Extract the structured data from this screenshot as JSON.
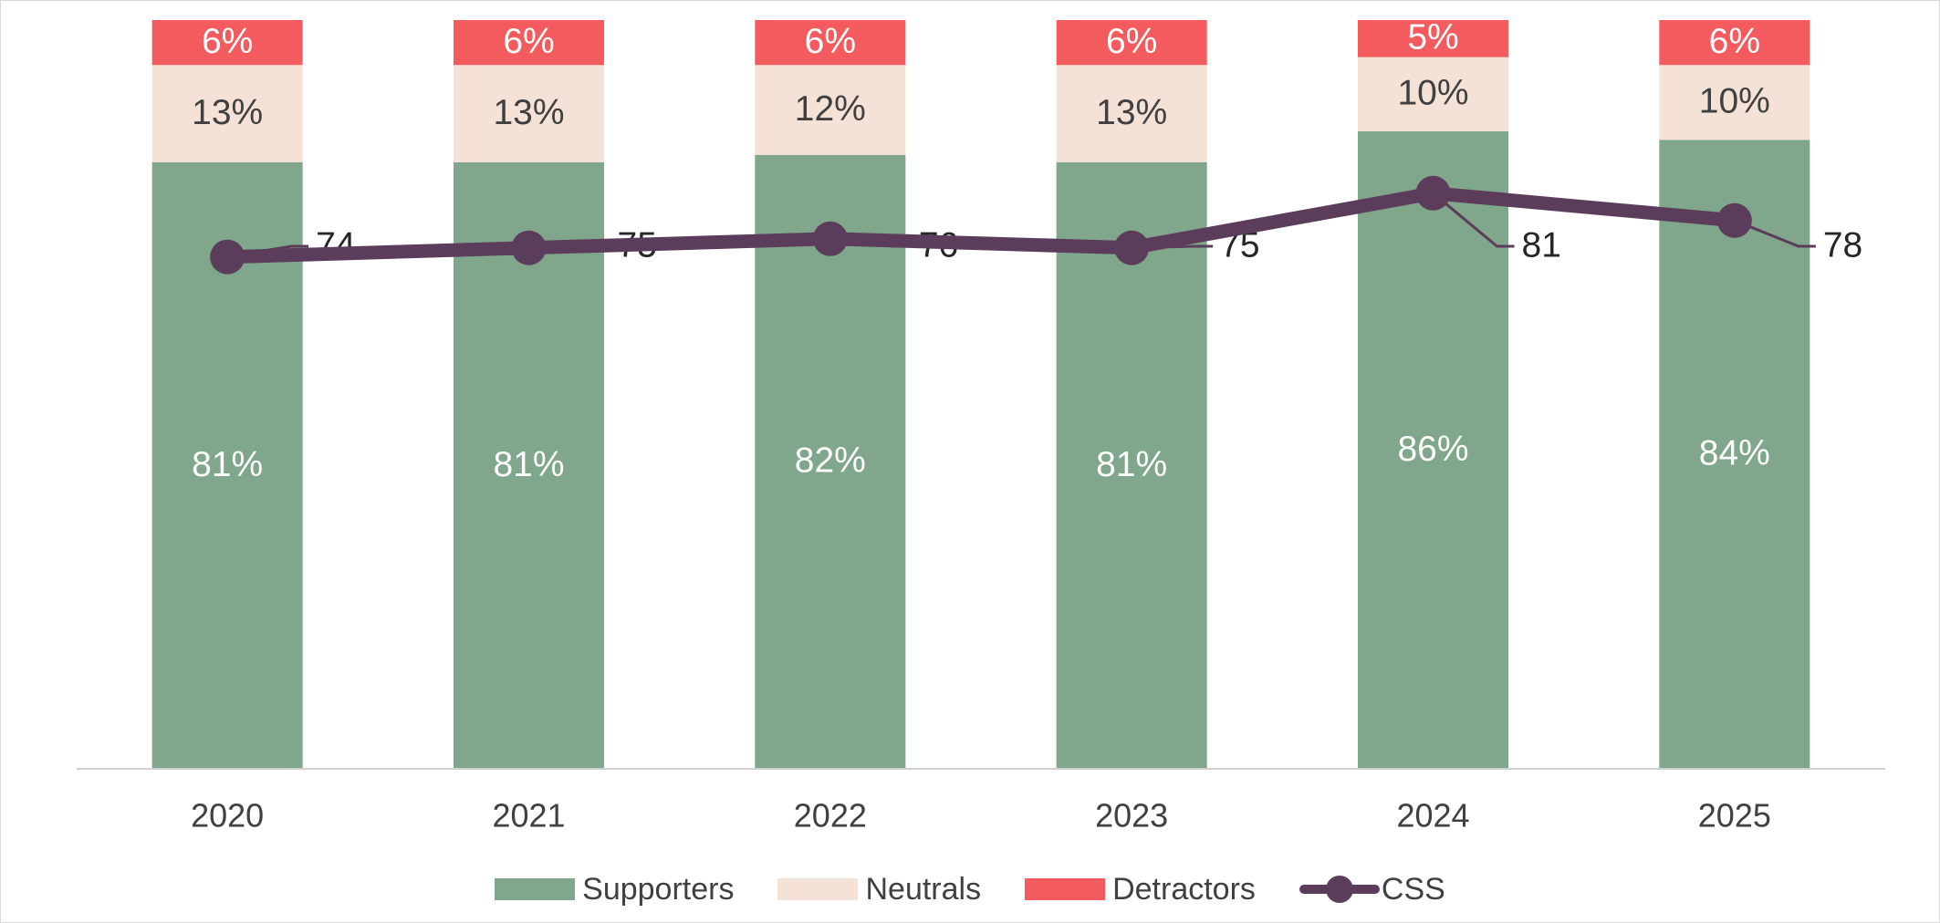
{
  "chart_data": {
    "type": "bar",
    "stacked": true,
    "categories": [
      "2020",
      "2021",
      "2022",
      "2023",
      "2024",
      "2025"
    ],
    "series": [
      {
        "name": "Supporters",
        "values": [
          81,
          81,
          82,
          81,
          86,
          84
        ],
        "labels": [
          "81%",
          "81%",
          "82%",
          "81%",
          "86%",
          "84%"
        ],
        "color": "#80a68c",
        "label_color": "#ffffff"
      },
      {
        "name": "Neutrals",
        "values": [
          13,
          13,
          12,
          13,
          10,
          10
        ],
        "labels": [
          "13%",
          "13%",
          "12%",
          "13%",
          "10%",
          "10%"
        ],
        "color": "#f4e2d7",
        "label_color": "#404040"
      },
      {
        "name": "Detractors",
        "values": [
          6,
          6,
          6,
          6,
          5,
          6
        ],
        "labels": [
          "6%",
          "6%",
          "6%",
          "6%",
          "5%",
          "6%"
        ],
        "color": "#f45b5e",
        "label_color": "#ffffff"
      }
    ],
    "line_series": {
      "name": "CSS",
      "type": "line",
      "values": [
        74,
        75,
        76,
        75,
        81,
        78
      ],
      "labels": [
        "74",
        "75",
        "76",
        "75",
        "81",
        "78"
      ],
      "color": "#5b3d5b",
      "ylim": [
        0,
        100
      ]
    },
    "ylim": [
      0,
      100
    ],
    "title": "",
    "xlabel": "",
    "ylabel": "",
    "grid": false,
    "legend_position": "bottom"
  },
  "legend": {
    "items": [
      {
        "name": "Supporters",
        "color": "#80a68c",
        "kind": "bar"
      },
      {
        "name": "Neutrals",
        "color": "#f4e2d7",
        "kind": "bar"
      },
      {
        "name": "Detractors",
        "color": "#f45b5e",
        "kind": "bar"
      },
      {
        "name": "CSS",
        "color": "#5b3d5b",
        "kind": "line"
      }
    ]
  }
}
